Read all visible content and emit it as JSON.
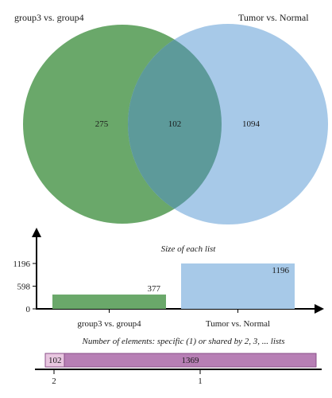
{
  "venn": {
    "set_a": {
      "label": "group3 vs. group4",
      "color": "#6aa86a",
      "unique": "275",
      "size": 377
    },
    "set_b": {
      "label": "Tumor vs. Normal",
      "color": "#a7c9e8",
      "unique": "1094",
      "size": 1196
    },
    "intersection": {
      "value": "102",
      "color": "#5d9a9a"
    }
  },
  "size_chart": {
    "title": "Size of each list",
    "y_ticks": [
      "1196",
      "598",
      "0"
    ],
    "categories": [
      "group3 vs. group4",
      "Tumor vs. Normal"
    ],
    "values": [
      377,
      1196
    ],
    "value_labels": [
      "377",
      "1196"
    ],
    "colors": [
      "#6aa86a",
      "#a7c9e8"
    ],
    "ylim": [
      0,
      1196
    ]
  },
  "shared_chart": {
    "title_em": "Number of elements",
    "title_rest": ": specific (1) or shared by 2, 3, ... lists",
    "segments": [
      {
        "label": "102",
        "count": 102,
        "tick": "2",
        "color": "#e8c6e0"
      },
      {
        "label": "1369",
        "count": 1369,
        "tick": "1",
        "color": "#b77fb5"
      }
    ]
  }
}
